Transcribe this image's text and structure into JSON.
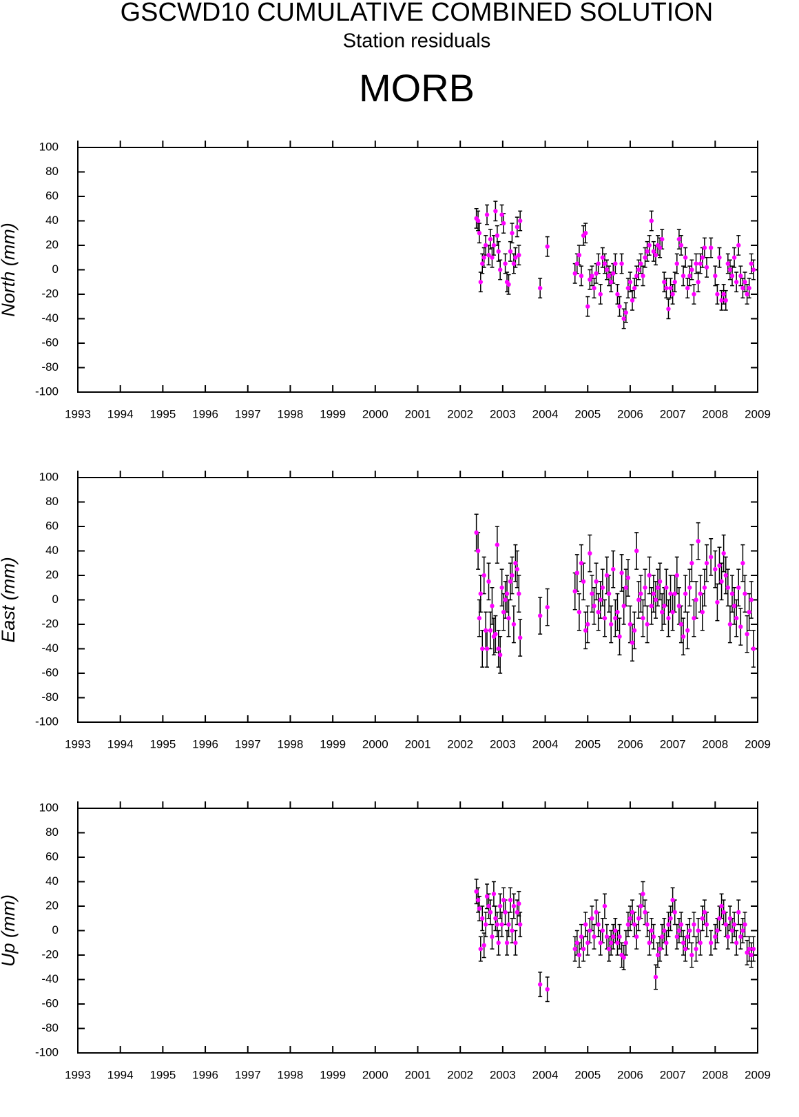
{
  "header": {
    "title": "GSCWD10 CUMULATIVE COMBINED SOLUTION",
    "subtitle": "Station residuals",
    "station": "MORB"
  },
  "chart_data": [
    {
      "type": "scatter",
      "ylabel": "North (mm)",
      "color": "#ff00ff",
      "error": 8,
      "xlim": [
        1993,
        2009
      ],
      "xticks": [
        1993,
        1994,
        1995,
        1996,
        1997,
        1998,
        1999,
        2000,
        2001,
        2002,
        2003,
        2004,
        2005,
        2006,
        2007,
        2008,
        2009
      ],
      "ylim": [
        -100,
        100
      ],
      "yticks": [
        -100,
        -80,
        -60,
        -40,
        -20,
        0,
        20,
        40,
        60,
        80,
        100
      ],
      "x": [
        2002.38,
        2002.42,
        2002.45,
        2002.48,
        2002.52,
        2002.56,
        2002.6,
        2002.63,
        2002.67,
        2002.71,
        2002.75,
        2002.79,
        2002.83,
        2002.87,
        2002.9,
        2002.94,
        2002.98,
        2003.02,
        2003.06,
        2003.1,
        2003.14,
        2003.18,
        2003.22,
        2003.26,
        2003.3,
        2003.34,
        2003.38,
        2003.41,
        2003.88,
        2004.05,
        2004.7,
        2004.75,
        2004.8,
        2004.85,
        2004.9,
        2004.95,
        2005.0,
        2005.05,
        2005.1,
        2005.15,
        2005.2,
        2005.25,
        2005.3,
        2005.35,
        2005.4,
        2005.45,
        2005.5,
        2005.55,
        2005.6,
        2005.65,
        2005.7,
        2005.75,
        2005.8,
        2005.85,
        2005.9,
        2005.95,
        2006.0,
        2006.05,
        2006.1,
        2006.15,
        2006.2,
        2006.25,
        2006.3,
        2006.35,
        2006.4,
        2006.45,
        2006.5,
        2006.55,
        2006.6,
        2006.65,
        2006.7,
        2006.75,
        2006.8,
        2006.85,
        2006.9,
        2006.95,
        2007.0,
        2007.05,
        2007.1,
        2007.15,
        2007.2,
        2007.25,
        2007.3,
        2007.35,
        2007.4,
        2007.45,
        2007.5,
        2007.55,
        2007.6,
        2007.65,
        2007.7,
        2007.75,
        2007.8,
        2007.9,
        2008.0,
        2008.05,
        2008.1,
        2008.15,
        2008.2,
        2008.25,
        2008.3,
        2008.35,
        2008.4,
        2008.45,
        2008.5,
        2008.55,
        2008.6,
        2008.65,
        2008.7,
        2008.75,
        2008.8,
        2008.85,
        2008.9
      ],
      "values": [
        42,
        40,
        30,
        -10,
        5,
        10,
        20,
        45,
        12,
        25,
        10,
        20,
        48,
        28,
        15,
        0,
        45,
        38,
        5,
        -10,
        -12,
        15,
        30,
        5,
        10,
        35,
        12,
        40,
        -15,
        19,
        -3,
        5,
        12,
        -5,
        28,
        30,
        -30,
        -8,
        -5,
        -15,
        -3,
        5,
        -20,
        10,
        5,
        0,
        -5,
        -10,
        -3,
        5,
        -20,
        -30,
        5,
        -40,
        -35,
        -15,
        -10,
        -25,
        -15,
        -5,
        0,
        5,
        -5,
        10,
        15,
        20,
        40,
        15,
        12,
        20,
        18,
        25,
        -10,
        -15,
        -32,
        -15,
        -20,
        -10,
        5,
        25,
        20,
        -5,
        10,
        -15,
        -5,
        0,
        -20,
        5,
        -10,
        5,
        10,
        18,
        2,
        18,
        -5,
        -20,
        10,
        -25,
        -20,
        -25,
        5,
        0,
        -5,
        10,
        -10,
        20,
        -5,
        -15,
        -10,
        -20,
        -15,
        5,
        0
      ]
    },
    {
      "type": "scatter",
      "ylabel": "East (mm)",
      "color": "#ff00ff",
      "error": 15,
      "xlim": [
        1993,
        2009
      ],
      "xticks": [
        1993,
        1994,
        1995,
        1996,
        1997,
        1998,
        1999,
        2000,
        2001,
        2002,
        2003,
        2004,
        2005,
        2006,
        2007,
        2008,
        2009
      ],
      "ylim": [
        -100,
        100
      ],
      "yticks": [
        -100,
        -80,
        -60,
        -40,
        -20,
        0,
        20,
        40,
        60,
        80,
        100
      ],
      "x": [
        2002.38,
        2002.42,
        2002.45,
        2002.48,
        2002.52,
        2002.56,
        2002.6,
        2002.63,
        2002.67,
        2002.71,
        2002.75,
        2002.79,
        2002.83,
        2002.87,
        2002.9,
        2002.94,
        2002.98,
        2003.02,
        2003.06,
        2003.1,
        2003.14,
        2003.18,
        2003.22,
        2003.26,
        2003.3,
        2003.34,
        2003.38,
        2003.41,
        2003.88,
        2004.05,
        2004.7,
        2004.75,
        2004.8,
        2004.85,
        2004.9,
        2004.95,
        2005.0,
        2005.05,
        2005.1,
        2005.15,
        2005.2,
        2005.25,
        2005.3,
        2005.35,
        2005.4,
        2005.45,
        2005.5,
        2005.55,
        2005.6,
        2005.65,
        2005.7,
        2005.75,
        2005.8,
        2005.85,
        2005.9,
        2005.95,
        2006.0,
        2006.05,
        2006.1,
        2006.15,
        2006.2,
        2006.25,
        2006.3,
        2006.35,
        2006.4,
        2006.45,
        2006.5,
        2006.55,
        2006.6,
        2006.65,
        2006.7,
        2006.75,
        2006.8,
        2006.85,
        2006.9,
        2006.95,
        2007.0,
        2007.05,
        2007.1,
        2007.15,
        2007.2,
        2007.25,
        2007.3,
        2007.35,
        2007.4,
        2007.45,
        2007.5,
        2007.55,
        2007.6,
        2007.65,
        2007.7,
        2007.75,
        2007.8,
        2007.9,
        2008.0,
        2008.05,
        2008.1,
        2008.15,
        2008.2,
        2008.25,
        2008.3,
        2008.35,
        2008.4,
        2008.45,
        2008.5,
        2008.55,
        2008.6,
        2008.65,
        2008.7,
        2008.75,
        2008.8,
        2008.85,
        2008.9
      ],
      "values": [
        55,
        40,
        -15,
        5,
        -40,
        20,
        -25,
        -40,
        15,
        -25,
        -5,
        -30,
        -28,
        45,
        -40,
        -45,
        10,
        -10,
        0,
        5,
        -15,
        15,
        20,
        -20,
        30,
        25,
        5,
        -31,
        -13,
        -6,
        7,
        22,
        -10,
        30,
        15,
        -25,
        -20,
        38,
        5,
        -5,
        15,
        -10,
        0,
        10,
        -15,
        20,
        5,
        -20,
        25,
        -15,
        -10,
        -30,
        22,
        -5,
        10,
        18,
        -20,
        -35,
        -25,
        40,
        0,
        5,
        -15,
        10,
        -20,
        20,
        -5,
        5,
        0,
        10,
        15,
        -10,
        -5,
        10,
        -15,
        5,
        -10,
        5,
        20,
        -5,
        -20,
        -30,
        5,
        -25,
        10,
        30,
        -15,
        0,
        48,
        5,
        -10,
        10,
        30,
        35,
        25,
        -2,
        28,
        15,
        38,
        20,
        10,
        -20,
        5,
        -5,
        -15,
        10,
        -22,
        30,
        5,
        -28,
        -10,
        0,
        -40
      ]
    },
    {
      "type": "scatter",
      "ylabel": "Up (mm)",
      "color": "#ff00ff",
      "error": 10,
      "xlim": [
        1993,
        2009
      ],
      "xticks": [
        1993,
        1994,
        1995,
        1996,
        1997,
        1998,
        1999,
        2000,
        2001,
        2002,
        2003,
        2004,
        2005,
        2006,
        2007,
        2008,
        2009
      ],
      "ylim": [
        -100,
        100
      ],
      "yticks": [
        -100,
        -80,
        -60,
        -40,
        -20,
        0,
        20,
        40,
        60,
        80,
        100
      ],
      "x": [
        2002.38,
        2002.42,
        2002.45,
        2002.48,
        2002.52,
        2002.56,
        2002.6,
        2002.63,
        2002.67,
        2002.71,
        2002.75,
        2002.79,
        2002.83,
        2002.87,
        2002.9,
        2002.94,
        2002.98,
        2003.02,
        2003.06,
        2003.1,
        2003.14,
        2003.18,
        2003.22,
        2003.26,
        2003.3,
        2003.34,
        2003.38,
        2003.41,
        2003.88,
        2004.05,
        2004.7,
        2004.75,
        2004.8,
        2004.85,
        2004.9,
        2004.95,
        2005.0,
        2005.05,
        2005.1,
        2005.15,
        2005.2,
        2005.25,
        2005.3,
        2005.35,
        2005.4,
        2005.45,
        2005.5,
        2005.55,
        2005.6,
        2005.65,
        2005.7,
        2005.75,
        2005.8,
        2005.85,
        2005.9,
        2005.95,
        2006.0,
        2006.05,
        2006.1,
        2006.15,
        2006.2,
        2006.25,
        2006.3,
        2006.35,
        2006.4,
        2006.45,
        2006.5,
        2006.55,
        2006.6,
        2006.65,
        2006.7,
        2006.75,
        2006.8,
        2006.85,
        2006.9,
        2006.95,
        2007.0,
        2007.05,
        2007.1,
        2007.15,
        2007.2,
        2007.25,
        2007.3,
        2007.35,
        2007.4,
        2007.45,
        2007.5,
        2007.55,
        2007.6,
        2007.65,
        2007.7,
        2007.75,
        2007.8,
        2007.9,
        2008.0,
        2008.05,
        2008.1,
        2008.15,
        2008.2,
        2008.25,
        2008.3,
        2008.35,
        2008.4,
        2008.45,
        2008.5,
        2008.55,
        2008.6,
        2008.65,
        2008.7,
        2008.75,
        2008.8,
        2008.85,
        2008.9
      ],
      "values": [
        32,
        25,
        18,
        -15,
        10,
        -12,
        5,
        28,
        20,
        15,
        -5,
        30,
        10,
        5,
        -10,
        20,
        5,
        25,
        15,
        -10,
        5,
        25,
        0,
        20,
        -10,
        15,
        22,
        5,
        -44,
        -48,
        -15,
        -10,
        -20,
        -5,
        -15,
        5,
        -10,
        0,
        10,
        -5,
        15,
        5,
        -10,
        0,
        20,
        -5,
        -15,
        -10,
        -5,
        0,
        -10,
        -5,
        -20,
        -22,
        -10,
        5,
        10,
        15,
        5,
        -5,
        10,
        20,
        30,
        15,
        5,
        -10,
        0,
        -5,
        -38,
        -20,
        -15,
        -5,
        0,
        -10,
        5,
        10,
        25,
        15,
        -5,
        0,
        5,
        -10,
        -15,
        -5,
        0,
        -20,
        5,
        -15,
        0,
        -10,
        10,
        15,
        5,
        -10,
        -5,
        0,
        10,
        20,
        15,
        5,
        -5,
        10,
        0,
        5,
        -10,
        15,
        -5,
        0,
        5,
        -18,
        -15,
        -20,
        -15
      ]
    }
  ]
}
